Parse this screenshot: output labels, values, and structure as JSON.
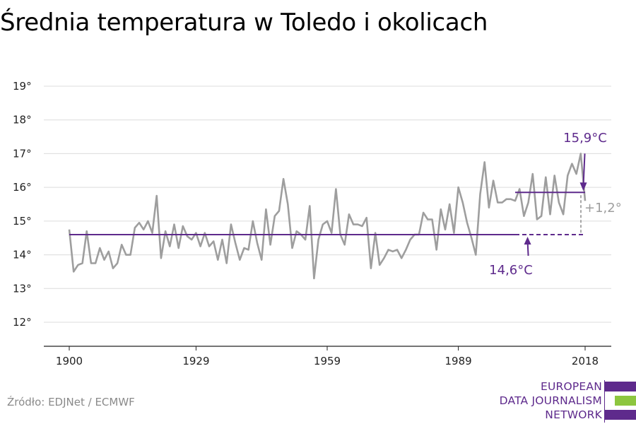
{
  "chart_data": {
    "type": "line",
    "title": "Średnia temperatura w Toledo i okolicach",
    "xlabel": "",
    "ylabel": "",
    "xlim": [
      1900,
      2018
    ],
    "ylim": [
      12,
      19
    ],
    "x_ticks": [
      1900,
      1929,
      1959,
      1989,
      2018
    ],
    "x_tick_labels": [
      "1900",
      "1929",
      "1959",
      "1989",
      "2018"
    ],
    "y_ticks": [
      12,
      13,
      14,
      15,
      16,
      17,
      18,
      19
    ],
    "y_tick_labels": [
      "12°",
      "13°",
      "14°",
      "15°",
      "16°",
      "17°",
      "18°",
      "19°"
    ],
    "grid": true,
    "series": [
      {
        "color": "#9e9e9e",
        "x": [
          1900,
          1901,
          1902,
          1903,
          1904,
          1905,
          1906,
          1907,
          1908,
          1909,
          1910,
          1911,
          1912,
          1913,
          1914,
          1915,
          1916,
          1917,
          1918,
          1919,
          1920,
          1921,
          1922,
          1923,
          1924,
          1925,
          1926,
          1927,
          1928,
          1929,
          1930,
          1931,
          1932,
          1933,
          1934,
          1935,
          1936,
          1937,
          1938,
          1939,
          1940,
          1941,
          1942,
          1943,
          1944,
          1945,
          1946,
          1947,
          1948,
          1949,
          1950,
          1951,
          1952,
          1953,
          1954,
          1955,
          1956,
          1957,
          1958,
          1959,
          1960,
          1961,
          1962,
          1963,
          1964,
          1965,
          1966,
          1967,
          1968,
          1969,
          1970,
          1971,
          1972,
          1973,
          1974,
          1975,
          1976,
          1977,
          1978,
          1979,
          1980,
          1981,
          1982,
          1983,
          1984,
          1985,
          1986,
          1987,
          1988,
          1989,
          1990,
          1991,
          1992,
          1993,
          1994,
          1995,
          1996,
          1997,
          1998,
          1999,
          2000,
          2001,
          2002,
          2003,
          2004,
          2005,
          2006,
          2007,
          2008,
          2009,
          2010,
          2011,
          2012,
          2013,
          2014,
          2015,
          2016,
          2017,
          2018
        ],
        "values": [
          14.75,
          13.5,
          13.7,
          13.75,
          14.7,
          13.75,
          13.75,
          14.2,
          13.85,
          14.1,
          13.6,
          13.75,
          14.3,
          14.0,
          14.0,
          14.8,
          14.95,
          14.75,
          15.0,
          14.65,
          15.75,
          13.9,
          14.7,
          14.25,
          14.9,
          14.2,
          14.85,
          14.55,
          14.45,
          14.65,
          14.25,
          14.65,
          14.25,
          14.4,
          13.85,
          14.45,
          13.75,
          14.9,
          14.35,
          13.85,
          14.2,
          14.15,
          15.0,
          14.35,
          13.85,
          15.35,
          14.3,
          15.15,
          15.3,
          16.25,
          15.5,
          14.2,
          14.7,
          14.6,
          14.45,
          15.45,
          13.3,
          14.45,
          14.9,
          15.0,
          14.65,
          15.95,
          14.6,
          14.3,
          15.2,
          14.9,
          14.9,
          14.85,
          15.1,
          13.6,
          14.65,
          13.7,
          13.9,
          14.15,
          14.1,
          14.15,
          13.9,
          14.15,
          14.45,
          14.6,
          14.6,
          15.25,
          15.05,
          15.05,
          14.15,
          15.35,
          14.75,
          15.5,
          14.65,
          16.0,
          15.55,
          14.95,
          14.5,
          14.0,
          15.8,
          16.75,
          15.4,
          16.2,
          15.55,
          15.55,
          15.65,
          15.65,
          15.6,
          15.95,
          15.15,
          15.55,
          16.4,
          15.05,
          15.15,
          16.3,
          15.2,
          16.35,
          15.55,
          15.2,
          16.35,
          16.7,
          16.4,
          17.0,
          15.6
        ]
      }
    ],
    "annotations": {
      "baseline": {
        "label": "14,6°C",
        "value": 14.6,
        "x_start": 1900,
        "x_solid_end": 2002,
        "x_end": 2018,
        "color": "#5e2a8c"
      },
      "recent": {
        "label": "15,9°C",
        "value": 15.85,
        "x_start": 2002,
        "x_end": 2018,
        "color": "#5e2a8c"
      },
      "difference": {
        "label": "+1,2°",
        "color": "#9e9e9e"
      }
    }
  },
  "source": "Źródło: EDJNet / ECMWF",
  "logo": {
    "lines": [
      "EUROPEAN",
      "DATA JOURNALISM",
      "NETWORK"
    ],
    "colors": [
      "#5e2a8c",
      "#8dc63f",
      "#5e2a8c"
    ]
  }
}
